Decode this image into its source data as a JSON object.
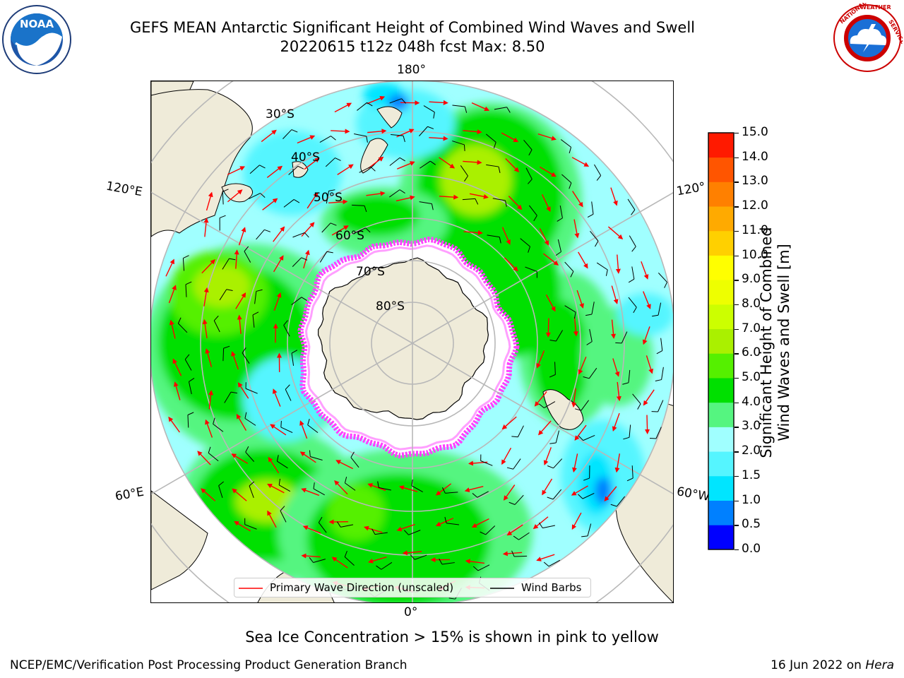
{
  "title": {
    "line1": "GEFS MEAN Antarctic Significant Height of Combined Wind Waves and Swell",
    "line2": "20220615 t12z 048h fcst   Max: 8.50"
  },
  "logos": {
    "left": {
      "icon": "noaa-logo",
      "text": "NOAA",
      "ring_text": "NATIONAL OCEANIC AND ATMOSPHERIC ADMINISTRATION · U.S. DEPARTMENT OF COMMERCE"
    },
    "right": {
      "icon": "nws-logo",
      "ring_text": "NATIONAL WEATHER SERVICE"
    }
  },
  "map": {
    "projection": "south-polar-stereographic",
    "longitude_labels": {
      "top": "180°",
      "bottom": "0°",
      "upper_left": "120°E",
      "lower_left": "60°E",
      "upper_right": "120°",
      "lower_right": "60°W"
    },
    "latitude_labels": [
      "30°S",
      "40°S",
      "50°S",
      "60°S",
      "70°S",
      "80°S"
    ],
    "colors": {
      "land": "#efebd9",
      "ice_edge": "#ff40ff",
      "sea_ice_interior": "#ffffff",
      "grid": "#b8b8b8",
      "wave_arrow": "#ff0000",
      "wind_barb": "#000000"
    }
  },
  "legend": {
    "wave_label": "Primary Wave Direction (unscaled)",
    "barb_label": "Wind Barbs",
    "wave_color": "#ff0000",
    "barb_color": "#000000"
  },
  "colorbar": {
    "title_line1": "Significant Height of Combined",
    "title_line2": "Wind Waves and Swell [m]",
    "levels": [
      "0.0",
      "0.5",
      "1.0",
      "1.5",
      "2.0",
      "3.0",
      "4.0",
      "5.0",
      "6.0",
      "7.0",
      "8.0",
      "9.0",
      "10.0",
      "11.0",
      "12.0",
      "13.0",
      "14.0",
      "15.0"
    ],
    "colors": [
      "#0000ff",
      "#0080ff",
      "#00e5ff",
      "#55f5ff",
      "#a0ffff",
      "#55f580",
      "#00e000",
      "#55f000",
      "#aaf000",
      "#ccff00",
      "#eeff00",
      "#ffff00",
      "#ffd000",
      "#ffaa00",
      "#ff8000",
      "#ff5500",
      "#ff1a00"
    ]
  },
  "footer": {
    "ice_note": "Sea Ice Concentration > 15% is shown in pink to yellow",
    "credit": "NCEP/EMC/Verification Post Processing Product Generation Branch",
    "date_prefix": "16 Jun 2022 on ",
    "machine": "Hera"
  }
}
